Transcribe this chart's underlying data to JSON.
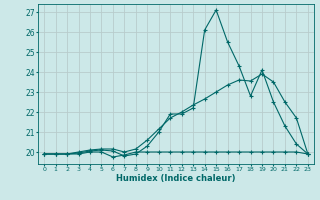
{
  "xlabel": "Humidex (Indice chaleur)",
  "bg_color": "#cce8e8",
  "line_color": "#006868",
  "grid_color": "#b8cccc",
  "xlim": [
    -0.5,
    23.5
  ],
  "ylim": [
    19.4,
    27.4
  ],
  "line1_x": [
    0,
    1,
    2,
    3,
    4,
    5,
    6,
    7,
    8,
    9,
    10,
    11,
    12,
    13,
    14,
    15,
    16,
    17,
    18,
    19,
    20,
    21,
    22,
    23
  ],
  "line1_y": [
    19.9,
    19.9,
    19.9,
    19.9,
    20.0,
    20.0,
    19.75,
    19.85,
    20.0,
    20.0,
    20.0,
    20.0,
    20.0,
    20.0,
    20.0,
    20.0,
    20.0,
    20.0,
    20.0,
    20.0,
    20.0,
    20.0,
    20.0,
    19.9
  ],
  "line2_x": [
    0,
    1,
    2,
    3,
    4,
    5,
    6,
    7,
    8,
    9,
    10,
    11,
    12,
    13,
    14,
    15,
    16,
    17,
    18,
    19,
    20,
    21,
    22,
    23
  ],
  "line2_y": [
    19.9,
    19.9,
    19.9,
    19.95,
    20.05,
    20.1,
    20.05,
    19.8,
    19.9,
    20.3,
    21.0,
    21.9,
    21.9,
    22.2,
    26.1,
    27.1,
    25.5,
    24.3,
    22.8,
    24.1,
    22.5,
    21.3,
    20.4,
    19.9
  ],
  "line3_x": [
    0,
    1,
    2,
    3,
    4,
    5,
    6,
    7,
    8,
    9,
    10,
    11,
    12,
    13,
    14,
    15,
    16,
    17,
    18,
    19,
    20,
    21,
    22,
    23
  ],
  "line3_y": [
    19.9,
    19.9,
    19.9,
    20.0,
    20.1,
    20.15,
    20.15,
    20.0,
    20.15,
    20.6,
    21.15,
    21.7,
    22.0,
    22.35,
    22.65,
    23.0,
    23.35,
    23.6,
    23.55,
    23.9,
    23.5,
    22.5,
    21.7,
    19.9
  ],
  "yticks": [
    20,
    21,
    22,
    23,
    24,
    25,
    26,
    27
  ],
  "xticks": [
    0,
    1,
    2,
    3,
    4,
    5,
    6,
    7,
    8,
    9,
    10,
    11,
    12,
    13,
    14,
    15,
    16,
    17,
    18,
    19,
    20,
    21,
    22,
    23
  ]
}
